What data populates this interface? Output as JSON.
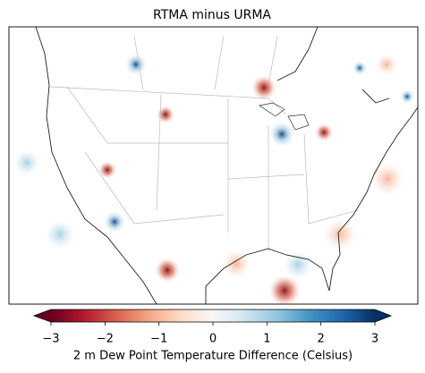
{
  "title": "RTMA minus URMA",
  "colorbar": {
    "label": "2 m Dew Point Temperature Difference (Celsius)",
    "lim": [
      -3,
      3
    ],
    "ticks": [
      {
        "value": -3,
        "label": "−3"
      },
      {
        "value": -2,
        "label": "−2"
      },
      {
        "value": -1,
        "label": "−1"
      },
      0,
      1,
      2,
      3
    ],
    "colors": [
      "#67001f",
      "#b2182b",
      "#d6604d",
      "#f4a582",
      "#fddbc7",
      "#f7f7f7",
      "#d1e5f0",
      "#92c5de",
      "#4393c3",
      "#2166ac",
      "#053061"
    ],
    "extend": "both"
  }
}
